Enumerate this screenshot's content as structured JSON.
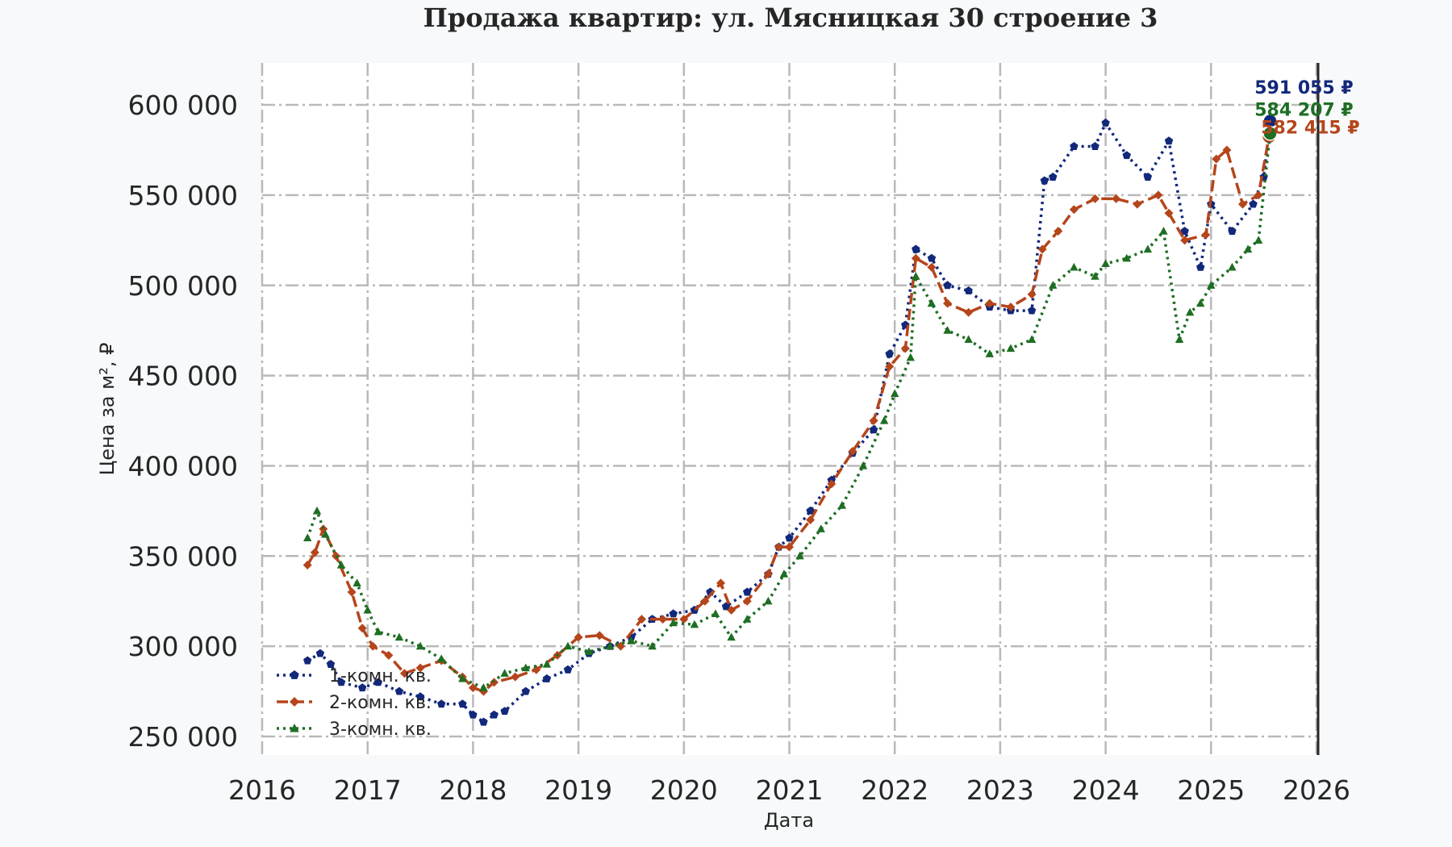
{
  "chart_data": {
    "type": "line",
    "title": "Продажа квартир: ул. Мясницкая 30 строение 3",
    "xlabel": "Дата",
    "ylabel": "Цена за м², ₽",
    "xlim": [
      2016,
      2026
    ],
    "ylim": [
      240000,
      625000
    ],
    "x_ticks": [
      "2016",
      "2017",
      "2018",
      "2019",
      "2020",
      "2021",
      "2022",
      "2023",
      "2024",
      "2025",
      "2026"
    ],
    "y_ticks": [
      "250 000",
      "300 000",
      "350 000",
      "400 000",
      "450 000",
      "500 000",
      "550 000",
      "600 000"
    ],
    "grid": true,
    "legend_position": "lower-left",
    "series": [
      {
        "name": "1-комн. кв.",
        "color": "#12287a",
        "line_style": "dotted",
        "marker": "pentagon",
        "x": [
          2016.43,
          2016.55,
          2016.65,
          2016.75,
          2016.95,
          2017.1,
          2017.3,
          2017.5,
          2017.7,
          2017.9,
          2018.0,
          2018.1,
          2018.2,
          2018.3,
          2018.5,
          2018.7,
          2018.9,
          2019.1,
          2019.3,
          2019.5,
          2019.7,
          2019.9,
          2020.1,
          2020.25,
          2020.4,
          2020.6,
          2020.8,
          2020.9,
          2021.0,
          2021.2,
          2021.4,
          2021.6,
          2021.8,
          2021.95,
          2022.1,
          2022.2,
          2022.35,
          2022.5,
          2022.7,
          2022.9,
          2023.1,
          2023.3,
          2023.42,
          2023.5,
          2023.7,
          2023.9,
          2024.0,
          2024.2,
          2024.4,
          2024.6,
          2024.75,
          2024.9,
          2025.0,
          2025.2,
          2025.4,
          2025.5,
          2025.56
        ],
        "values": [
          292000,
          296000,
          290000,
          280000,
          277000,
          280000,
          275000,
          272000,
          268000,
          268000,
          262000,
          258000,
          262000,
          264000,
          275000,
          282000,
          287000,
          296000,
          300000,
          305000,
          315000,
          318000,
          320000,
          330000,
          322000,
          330000,
          340000,
          355000,
          360000,
          375000,
          392000,
          407000,
          420000,
          462000,
          478000,
          520000,
          515000,
          500000,
          497000,
          488000,
          486000,
          486000,
          558000,
          560000,
          577000,
          577000,
          590000,
          572000,
          560000,
          580000,
          530000,
          510000,
          545000,
          530000,
          545000,
          560000,
          591055
        ]
      },
      {
        "name": "2-комн. кв.",
        "color": "#b5451b",
        "line_style": "dashed",
        "marker": "diamond",
        "x": [
          2016.43,
          2016.5,
          2016.58,
          2016.7,
          2016.85,
          2016.95,
          2017.05,
          2017.2,
          2017.35,
          2017.5,
          2017.7,
          2017.9,
          2018.0,
          2018.1,
          2018.2,
          2018.4,
          2018.6,
          2018.8,
          2019.0,
          2019.2,
          2019.4,
          2019.6,
          2019.8,
          2020.0,
          2020.2,
          2020.35,
          2020.45,
          2020.6,
          2020.8,
          2020.9,
          2021.0,
          2021.2,
          2021.4,
          2021.6,
          2021.8,
          2021.95,
          2022.1,
          2022.2,
          2022.35,
          2022.5,
          2022.7,
          2022.9,
          2023.1,
          2023.3,
          2023.4,
          2023.55,
          2023.7,
          2023.9,
          2024.1,
          2024.3,
          2024.5,
          2024.6,
          2024.75,
          2024.95,
          2025.05,
          2025.15,
          2025.3,
          2025.45,
          2025.55
        ],
        "values": [
          345000,
          352000,
          365000,
          350000,
          330000,
          310000,
          300000,
          295000,
          285000,
          288000,
          292000,
          283000,
          277000,
          275000,
          280000,
          283000,
          287000,
          295000,
          305000,
          306000,
          300000,
          315000,
          315000,
          315000,
          325000,
          335000,
          320000,
          325000,
          340000,
          355000,
          355000,
          370000,
          390000,
          408000,
          425000,
          455000,
          465000,
          515000,
          510000,
          490000,
          485000,
          490000,
          488000,
          495000,
          520000,
          530000,
          542000,
          548000,
          548000,
          545000,
          550000,
          540000,
          525000,
          528000,
          570000,
          575000,
          545000,
          550000,
          582415
        ]
      },
      {
        "name": "3-комн. кв.",
        "color": "#1e6e23",
        "line_style": "dotted",
        "marker": "triangle",
        "x": [
          2016.43,
          2016.52,
          2016.6,
          2016.75,
          2016.9,
          2017.0,
          2017.1,
          2017.3,
          2017.5,
          2017.7,
          2017.9,
          2018.1,
          2018.3,
          2018.5,
          2018.7,
          2018.9,
          2019.1,
          2019.3,
          2019.5,
          2019.7,
          2019.9,
          2020.1,
          2020.3,
          2020.45,
          2020.6,
          2020.8,
          2020.95,
          2021.1,
          2021.3,
          2021.5,
          2021.7,
          2021.9,
          2022.0,
          2022.15,
          2022.2,
          2022.35,
          2022.5,
          2022.7,
          2022.9,
          2023.1,
          2023.3,
          2023.5,
          2023.7,
          2023.9,
          2024.0,
          2024.2,
          2024.4,
          2024.55,
          2024.7,
          2024.8,
          2024.9,
          2025.0,
          2025.2,
          2025.35,
          2025.45,
          2025.56
        ],
        "values": [
          360000,
          375000,
          362000,
          345000,
          335000,
          320000,
          308000,
          305000,
          300000,
          293000,
          282000,
          277000,
          285000,
          288000,
          290000,
          300000,
          297000,
          300000,
          303000,
          300000,
          313000,
          312000,
          318000,
          305000,
          315000,
          325000,
          340000,
          350000,
          365000,
          378000,
          400000,
          425000,
          440000,
          460000,
          505000,
          490000,
          475000,
          470000,
          462000,
          465000,
          470000,
          500000,
          510000,
          505000,
          512000,
          515000,
          520000,
          530000,
          470000,
          485000,
          490000,
          500000,
          510000,
          520000,
          525000,
          584207
        ]
      }
    ],
    "annotations": [
      {
        "text": "591 055 ₽",
        "series": "1-комн. кв.",
        "x": 2025.56,
        "y": 591055
      },
      {
        "text": "584 207 ₽",
        "series": "3-комн. кв.",
        "x": 2025.56,
        "y": 584207
      },
      {
        "text": "582 415 ₽",
        "series": "2-комн. кв.",
        "x": 2025.56,
        "y": 582415
      }
    ]
  }
}
